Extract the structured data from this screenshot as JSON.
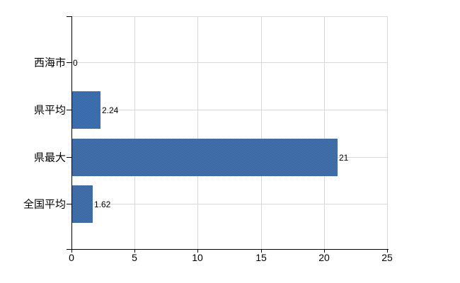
{
  "window": {
    "background": "#ffffff"
  },
  "chart_data": {
    "type": "bar",
    "orientation": "horizontal",
    "title": "",
    "categories": [
      "西海市",
      "県平均",
      "県最大",
      "全国平均"
    ],
    "values": [
      0,
      2.24,
      21,
      1.62
    ],
    "value_labels": [
      "0",
      "2.24",
      "21",
      "1.62"
    ],
    "xlabel": "",
    "ylabel": "",
    "xlim": [
      0,
      25
    ],
    "x_ticks": [
      0,
      5,
      10,
      15,
      20,
      25
    ],
    "x_tick_labels": [
      "0",
      "5",
      "10",
      "15",
      "20",
      "25"
    ],
    "grid": "on",
    "legend": "none",
    "colors": {
      "bar": "#3E6CA8",
      "bar_dither_light": "#4D79B5",
      "bar_dither_dark": "#2D5F9E",
      "gridline": "#D9D9D9",
      "axis": "#000000",
      "text": "#000000"
    }
  }
}
